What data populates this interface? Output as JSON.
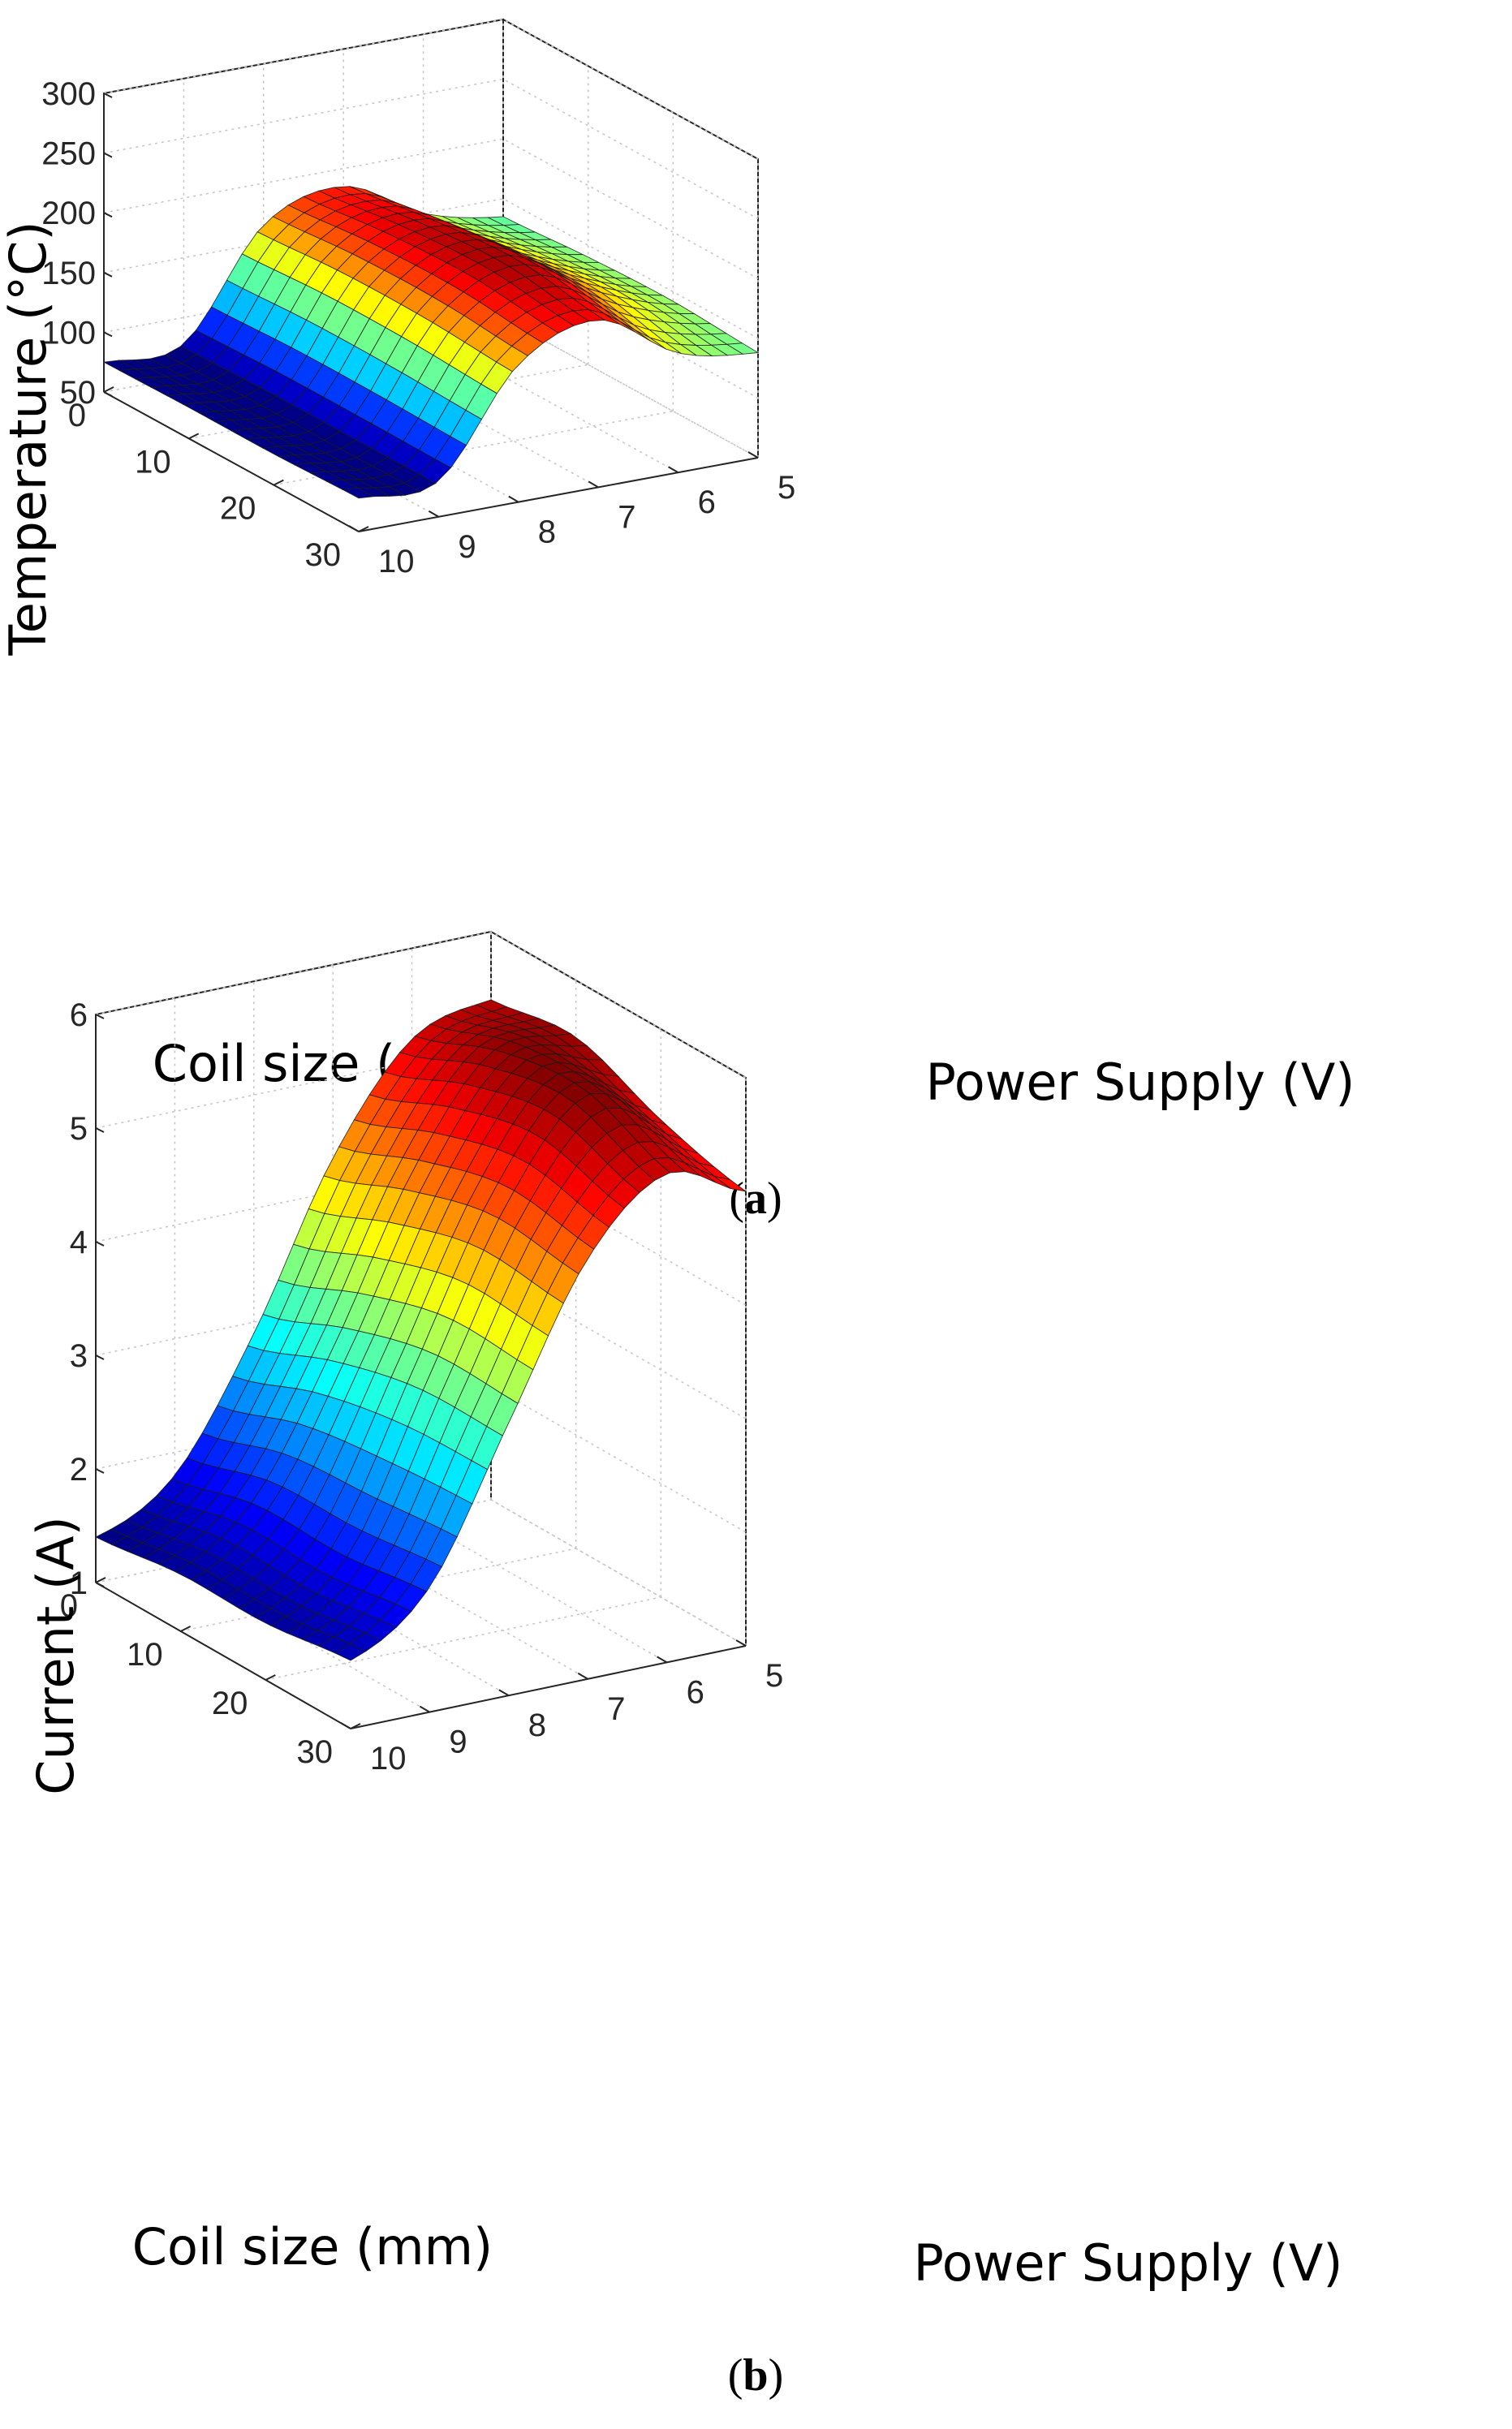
{
  "chart_data": [
    {
      "panel_label": "(a)",
      "panel_letter": "a",
      "type": "surface",
      "xlabel": "Coil size (mm)",
      "ylabel": "Power Supply (V)",
      "zlabel": "Temperature (°C)",
      "x_ticks": [
        0,
        10,
        20,
        30
      ],
      "y_ticks": [
        10,
        9,
        8,
        7,
        6,
        5
      ],
      "z_ticks": [
        50,
        100,
        150,
        200,
        250,
        300
      ],
      "xlim": [
        0,
        30
      ],
      "ylim": [
        5,
        10
      ],
      "zlim": [
        50,
        300
      ],
      "grid": true,
      "colormap": "jet",
      "z_color_range": [
        75,
        205
      ],
      "grid_x": [
        0,
        10,
        20,
        30
      ],
      "grid_y": [
        10,
        9,
        8,
        7,
        6,
        5
      ],
      "z": [
        [
          75,
          78,
          165,
          185,
          150,
          135
        ],
        [
          76,
          80,
          170,
          195,
          160,
          140
        ],
        [
          76,
          80,
          170,
          200,
          165,
          142
        ],
        [
          78,
          80,
          165,
          190,
          150,
          138
        ]
      ]
    },
    {
      "panel_label": "(b)",
      "panel_letter": "b",
      "type": "surface",
      "xlabel": "Coil size (mm)",
      "ylabel": "Power Supply (V)",
      "zlabel": "Current (A)",
      "x_ticks": [
        0,
        10,
        20,
        30
      ],
      "y_ticks": [
        10,
        9,
        8,
        7,
        6,
        5
      ],
      "z_ticks": [
        1,
        2,
        3,
        4,
        5,
        6
      ],
      "xlim": [
        0,
        30
      ],
      "ylim": [
        5,
        10
      ],
      "zlim": [
        1,
        6
      ],
      "grid": true,
      "colormap": "jet",
      "z_color_range": [
        1.4,
        5.6
      ],
      "grid_x": [
        0,
        10,
        20,
        30
      ],
      "grid_y": [
        10,
        9,
        8,
        7,
        6,
        5
      ],
      "z": [
        [
          1.4,
          1.8,
          2.9,
          4.3,
          5.2,
          5.4
        ],
        [
          1.5,
          2.0,
          3.2,
          4.6,
          5.5,
          5.5
        ],
        [
          1.5,
          2.0,
          3.4,
          4.8,
          5.6,
          5.2
        ],
        [
          1.6,
          2.1,
          3.4,
          4.7,
          5.3,
          5.0
        ]
      ]
    }
  ]
}
